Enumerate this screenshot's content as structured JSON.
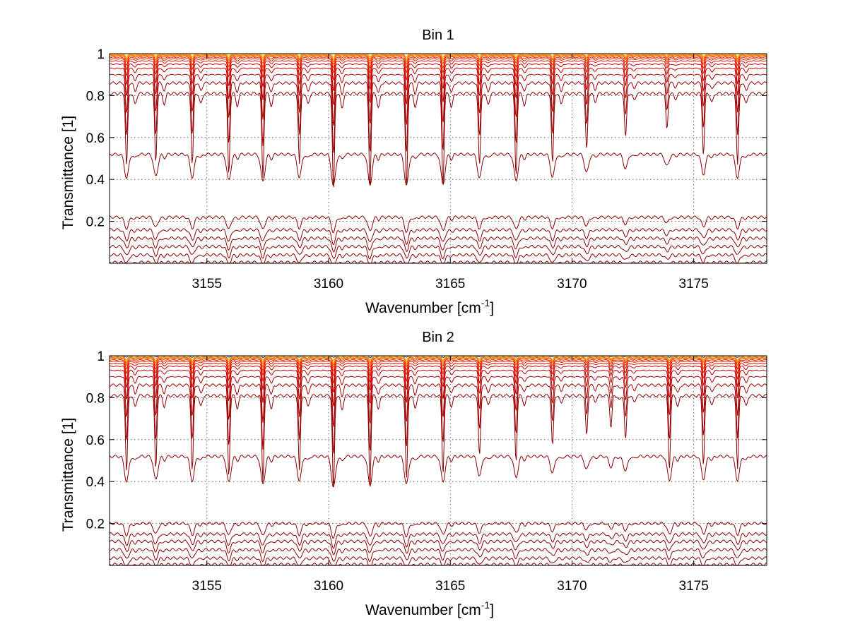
{
  "chart_data": [
    {
      "type": "line",
      "title": "Bin 1",
      "xlabel": "Wavenumber [cm",
      "xlabel_sup": "-1",
      "xlabel_end": "]",
      "ylabel": "Transmittance [1]",
      "xlim": [
        3151.0,
        3178.0
      ],
      "ylim": [
        0.0,
        1.0
      ],
      "xticks": [
        3155,
        3160,
        3165,
        3170,
        3175
      ],
      "xtick_labels": [
        "3155",
        "3160",
        "3165",
        "3170",
        "3175"
      ],
      "yticks": [
        0.2,
        0.4,
        0.6,
        0.8,
        1.0
      ],
      "ytick_labels": [
        "0.2",
        "0.4",
        "0.6",
        "0.8",
        "1"
      ],
      "grid": true,
      "line_group": {
        "description_count": 19,
        "baselines": [
          0.005,
          0.04,
          0.08,
          0.12,
          0.16,
          0.22,
          0.52,
          0.81,
          0.86,
          0.9,
          0.93,
          0.95,
          0.965,
          0.975,
          0.982,
          0.988,
          0.992,
          0.995,
          0.998
        ],
        "colors": [
          "#8b0000",
          "#8b0000",
          "#8b0000",
          "#8b0000",
          "#8b0000",
          "#8b0000",
          "#8b0000",
          "#8b0000",
          "#a00000",
          "#b00000",
          "#c00000",
          "#cc0000",
          "#dd1100",
          "#e82000",
          "#f03000",
          "#f54a00",
          "#fa6a00",
          "#fd8a00",
          "#ffaa00"
        ]
      },
      "absorption_lines": [
        {
          "x": 3151.7,
          "strength": 0.36
        },
        {
          "x": 3152.9,
          "strength": 0.34
        },
        {
          "x": 3154.4,
          "strength": 0.35
        },
        {
          "x": 3155.9,
          "strength": 0.4
        },
        {
          "x": 3157.3,
          "strength": 0.41
        },
        {
          "x": 3158.8,
          "strength": 0.35
        },
        {
          "x": 3160.2,
          "strength": 0.48
        },
        {
          "x": 3161.7,
          "strength": 0.46
        },
        {
          "x": 3163.2,
          "strength": 0.47
        },
        {
          "x": 3164.7,
          "strength": 0.45
        },
        {
          "x": 3166.2,
          "strength": 0.36
        },
        {
          "x": 3167.7,
          "strength": 0.4
        },
        {
          "x": 3169.2,
          "strength": 0.35
        },
        {
          "x": 3170.6,
          "strength": 0.28
        },
        {
          "x": 3172.2,
          "strength": 0.22
        },
        {
          "x": 3173.9,
          "strength": 0.18
        },
        {
          "x": 3175.4,
          "strength": 0.3
        },
        {
          "x": 3176.8,
          "strength": 0.35
        }
      ]
    },
    {
      "type": "line",
      "title": "Bin 2",
      "xlabel": "Wavenumber [cm",
      "xlabel_sup": "-1",
      "xlabel_end": "]",
      "ylabel": "Transmittance [1]",
      "xlim": [
        3151.0,
        3178.0
      ],
      "ylim": [
        0.0,
        1.0
      ],
      "xticks": [
        3155,
        3160,
        3165,
        3170,
        3175
      ],
      "xtick_labels": [
        "3155",
        "3160",
        "3165",
        "3170",
        "3175"
      ],
      "yticks": [
        0.2,
        0.4,
        0.6,
        0.8,
        1.0
      ],
      "ytick_labels": [
        "0.2",
        "0.4",
        "0.6",
        "0.8",
        "1"
      ],
      "grid": true,
      "line_group": {
        "description_count": 20,
        "baselines": [
          0.005,
          0.035,
          0.075,
          0.115,
          0.15,
          0.2,
          0.52,
          0.81,
          0.86,
          0.9,
          0.93,
          0.95,
          0.963,
          0.973,
          0.98,
          0.986,
          0.99,
          0.993,
          0.996,
          1.0
        ],
        "colors": [
          "#8b0000",
          "#8b0000",
          "#8b0000",
          "#8b0000",
          "#8b0000",
          "#8b0000",
          "#8b0000",
          "#8b0000",
          "#a00000",
          "#b00000",
          "#c00000",
          "#cc0000",
          "#dd1100",
          "#e82000",
          "#f03000",
          "#f54a00",
          "#fa6a00",
          "#fd8a00",
          "#ffaa00",
          "#1f4fbf"
        ]
      },
      "absorption_lines": [
        {
          "x": 3151.7,
          "strength": 0.38
        },
        {
          "x": 3152.9,
          "strength": 0.36
        },
        {
          "x": 3154.4,
          "strength": 0.37
        },
        {
          "x": 3155.9,
          "strength": 0.4
        },
        {
          "x": 3157.3,
          "strength": 0.42
        },
        {
          "x": 3158.8,
          "strength": 0.37
        },
        {
          "x": 3160.2,
          "strength": 0.47
        },
        {
          "x": 3161.7,
          "strength": 0.44
        },
        {
          "x": 3163.2,
          "strength": 0.42
        },
        {
          "x": 3164.7,
          "strength": 0.38
        },
        {
          "x": 3166.2,
          "strength": 0.3
        },
        {
          "x": 3167.7,
          "strength": 0.32
        },
        {
          "x": 3169.2,
          "strength": 0.25
        },
        {
          "x": 3170.6,
          "strength": 0.2
        },
        {
          "x": 3171.6,
          "strength": 0.16
        },
        {
          "x": 3172.2,
          "strength": 0.22
        },
        {
          "x": 3174.0,
          "strength": 0.36
        },
        {
          "x": 3175.4,
          "strength": 0.34
        },
        {
          "x": 3176.8,
          "strength": 0.36
        }
      ]
    }
  ]
}
